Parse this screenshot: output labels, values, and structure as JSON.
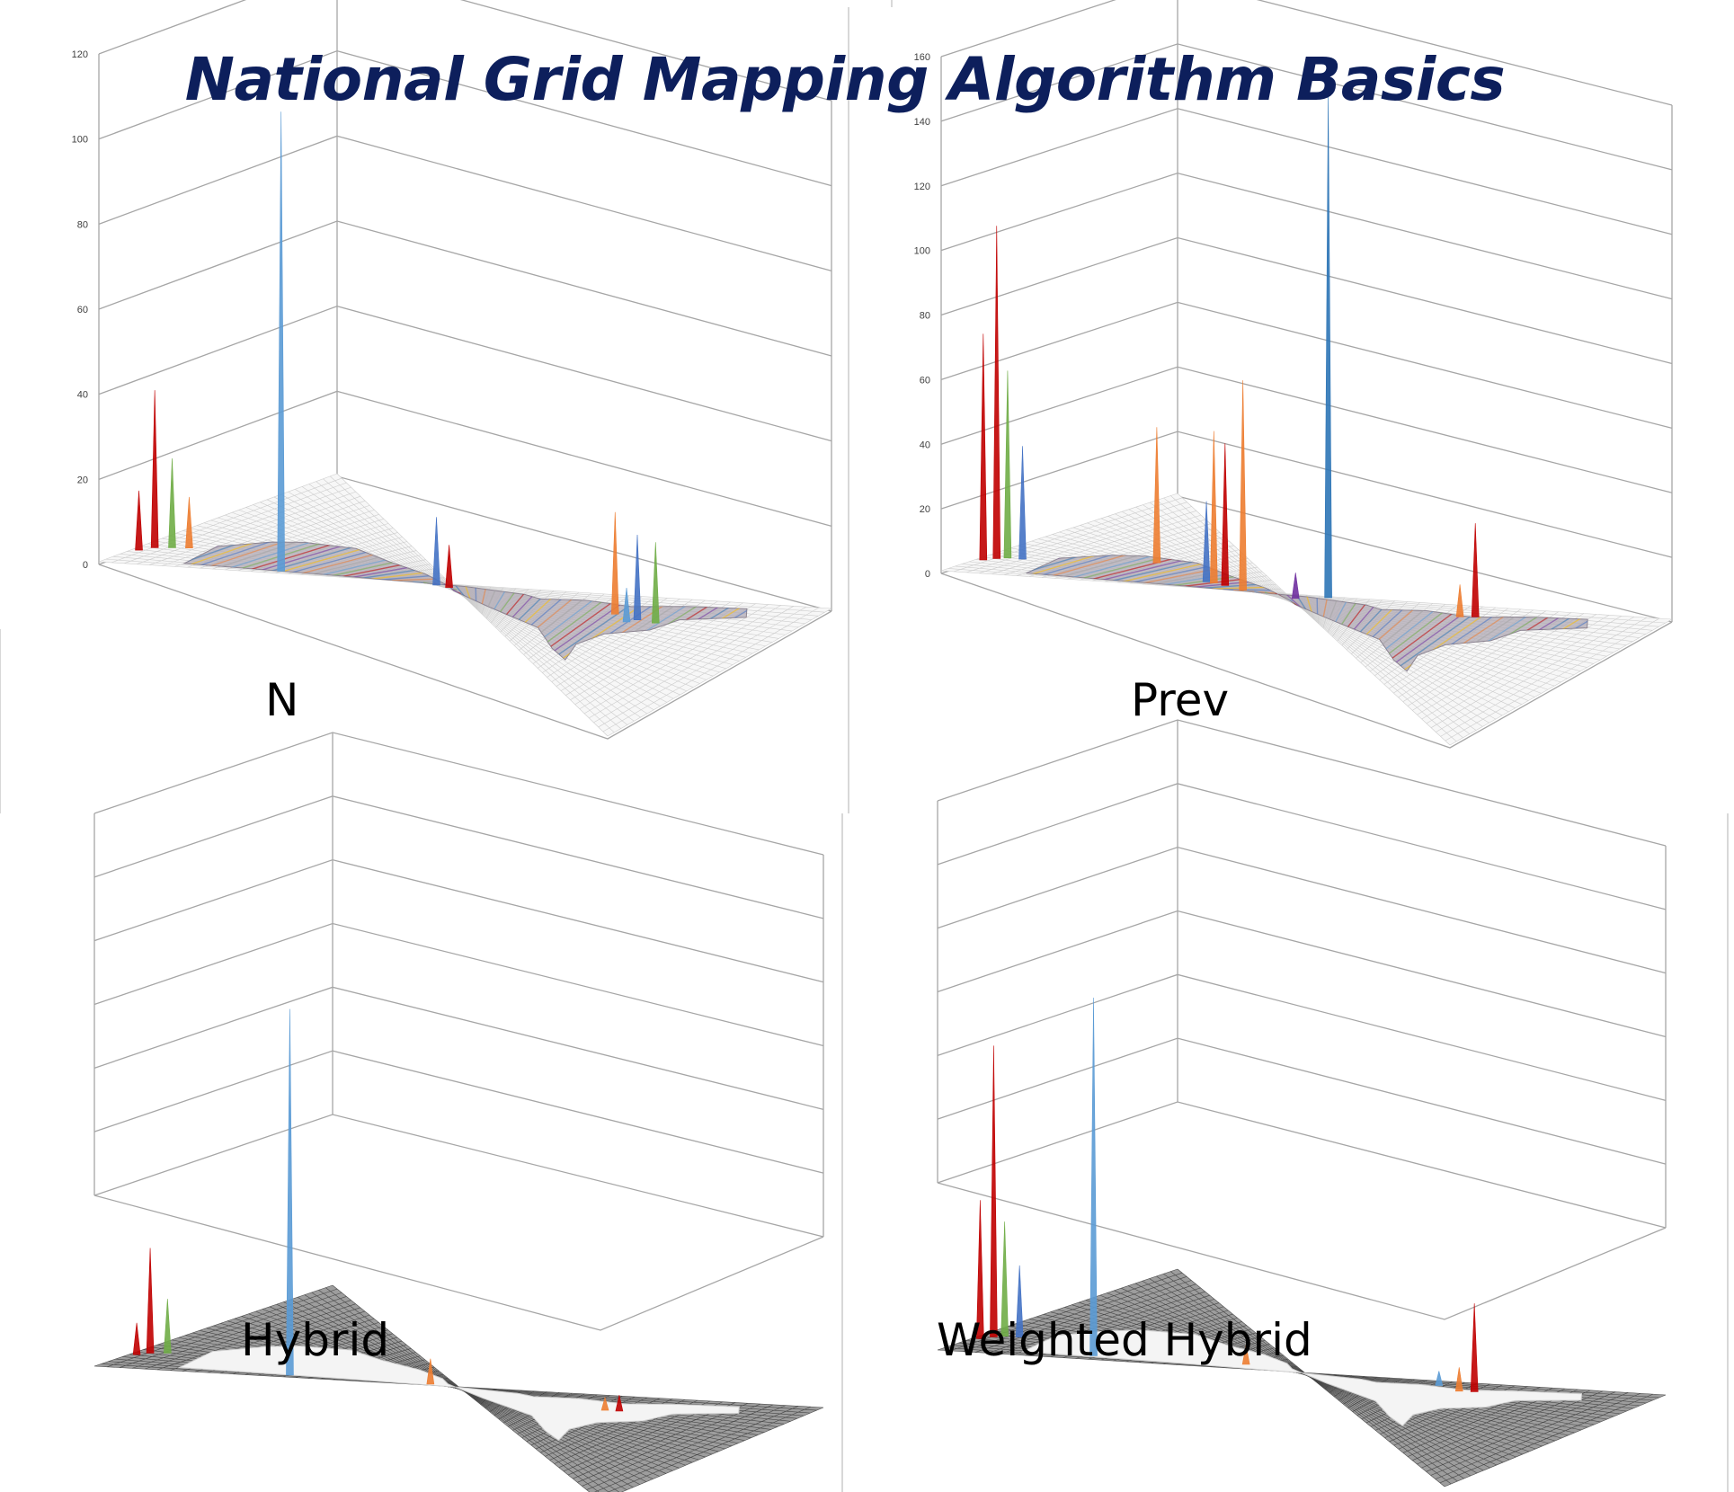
{
  "title": "National Grid Mapping Algorithm Basics",
  "colors": {
    "title": "#0d1f5c",
    "gridline": "#a6a6a6",
    "series_palette": [
      "#4472c4",
      "#ed7d31",
      "#a5a5a5",
      "#5b9bd5",
      "#70ad47",
      "#c00000",
      "#7030a0",
      "#2e75b6",
      "#ffc000"
    ],
    "map_surface": "#f2f2f2",
    "surface_dark": "#5a5a5a"
  },
  "chart_data": [
    {
      "type": "3d-surface-column",
      "panel": "N",
      "label": "N",
      "ylim": [
        0,
        120
      ],
      "yticks": [
        "0",
        "20",
        "40",
        "60",
        "80",
        "100",
        "120"
      ],
      "show_ticks": true,
      "grid": true,
      "surface": "land-shaded",
      "spikes": [
        {
          "gx": 0.24,
          "gy": 0.05,
          "value": 108,
          "color": "#5b9bd5"
        },
        {
          "gx": 0.02,
          "gy": 0.18,
          "value": 37,
          "color": "#c00000"
        },
        {
          "gx": 0.04,
          "gy": 0.2,
          "value": 21,
          "color": "#70ad47"
        },
        {
          "gx": 0.01,
          "gy": 0.14,
          "value": 14,
          "color": "#c00000"
        },
        {
          "gx": 0.06,
          "gy": 0.22,
          "value": 12,
          "color": "#ed7d31"
        },
        {
          "gx": 0.45,
          "gy": 0.26,
          "value": 16,
          "color": "#4472c4"
        },
        {
          "gx": 0.47,
          "gy": 0.28,
          "value": 10,
          "color": "#c00000"
        },
        {
          "gx": 0.74,
          "gy": 0.25,
          "value": 24,
          "color": "#ed7d31"
        },
        {
          "gx": 0.78,
          "gy": 0.27,
          "value": 20,
          "color": "#4472c4"
        },
        {
          "gx": 0.81,
          "gy": 0.27,
          "value": 19,
          "color": "#70ad47"
        },
        {
          "gx": 0.77,
          "gy": 0.31,
          "value": 8,
          "color": "#5b9bd5"
        }
      ]
    },
    {
      "type": "3d-surface-column",
      "panel": "Prev",
      "label": "Prev",
      "ylim": [
        0,
        160
      ],
      "yticks": [
        "0",
        "20",
        "40",
        "60",
        "80",
        "100",
        "120",
        "140",
        "160"
      ],
      "show_ticks": true,
      "grid": true,
      "surface": "land-shaded",
      "spikes": [
        {
          "gx": 0.53,
          "gy": 0.04,
          "value": 155,
          "color": "#2e75b6"
        },
        {
          "gx": 0.02,
          "gy": 0.18,
          "value": 103,
          "color": "#c00000"
        },
        {
          "gx": 0.01,
          "gy": 0.15,
          "value": 70,
          "color": "#c00000"
        },
        {
          "gx": 0.03,
          "gy": 0.2,
          "value": 58,
          "color": "#70ad47"
        },
        {
          "gx": 0.05,
          "gy": 0.21,
          "value": 35,
          "color": "#4472c4"
        },
        {
          "gx": 0.39,
          "gy": 0.29,
          "value": 65,
          "color": "#ed7d31"
        },
        {
          "gx": 0.33,
          "gy": 0.37,
          "value": 47,
          "color": "#ed7d31"
        },
        {
          "gx": 0.35,
          "gy": 0.37,
          "value": 44,
          "color": "#c00000"
        },
        {
          "gx": 0.32,
          "gy": 0.35,
          "value": 25,
          "color": "#4472c4"
        },
        {
          "gx": 0.48,
          "gy": 0.22,
          "value": 8,
          "color": "#7030a0"
        },
        {
          "gx": 0.2,
          "gy": 0.48,
          "value": 42,
          "color": "#ed7d31"
        },
        {
          "gx": 0.75,
          "gy": 0.13,
          "value": 29,
          "color": "#c00000"
        },
        {
          "gx": 0.73,
          "gy": 0.15,
          "value": 10,
          "color": "#ed7d31"
        }
      ]
    },
    {
      "type": "3d-surface-column",
      "panel": "Hybrid",
      "label": "Hybrid",
      "ylim": [
        0,
        120
      ],
      "yticks": [],
      "show_ticks": false,
      "grid": true,
      "surface": "ocean-shaded",
      "spikes": [
        {
          "gx": 0.26,
          "gy": 0.05,
          "value": 115,
          "color": "#5b9bd5"
        },
        {
          "gx": 0.02,
          "gy": 0.18,
          "value": 33,
          "color": "#c00000"
        },
        {
          "gx": 0.04,
          "gy": 0.2,
          "value": 17,
          "color": "#70ad47"
        },
        {
          "gx": 0.01,
          "gy": 0.15,
          "value": 10,
          "color": "#c00000"
        },
        {
          "gx": 0.45,
          "gy": 0.26,
          "value": 8,
          "color": "#ed7d31"
        },
        {
          "gx": 0.76,
          "gy": 0.26,
          "value": 5,
          "color": "#c00000"
        },
        {
          "gx": 0.74,
          "gy": 0.28,
          "value": 4,
          "color": "#ed7d31"
        }
      ]
    },
    {
      "type": "3d-surface-column",
      "panel": "Weighted Hybrid",
      "label": "Weighted Hybrid",
      "ylim": [
        0,
        160
      ],
      "yticks": [],
      "show_ticks": false,
      "grid": true,
      "surface": "ocean-shaded",
      "spikes": [
        {
          "gx": 0.2,
          "gy": 0.07,
          "value": 150,
          "color": "#5b9bd5"
        },
        {
          "gx": 0.02,
          "gy": 0.18,
          "value": 122,
          "color": "#c00000"
        },
        {
          "gx": 0.01,
          "gy": 0.15,
          "value": 58,
          "color": "#c00000"
        },
        {
          "gx": 0.03,
          "gy": 0.2,
          "value": 48,
          "color": "#70ad47"
        },
        {
          "gx": 0.05,
          "gy": 0.21,
          "value": 30,
          "color": "#4472c4"
        },
        {
          "gx": 0.76,
          "gy": 0.15,
          "value": 37,
          "color": "#c00000"
        },
        {
          "gx": 0.74,
          "gy": 0.17,
          "value": 10,
          "color": "#ed7d31"
        },
        {
          "gx": 0.4,
          "gy": 0.31,
          "value": 8,
          "color": "#ed7d31"
        },
        {
          "gx": 0.7,
          "gy": 0.1,
          "value": 6,
          "color": "#5b9bd5"
        }
      ]
    }
  ]
}
